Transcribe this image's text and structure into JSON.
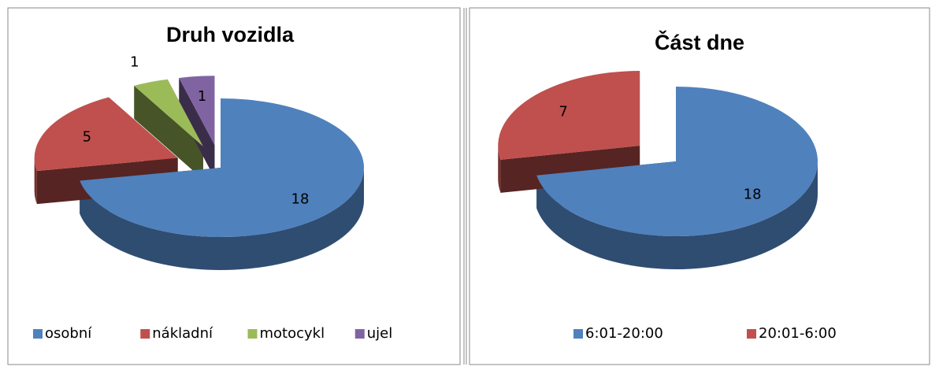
{
  "chart_data": [
    {
      "type": "pie",
      "title": "Druh vozidla",
      "categories": [
        "osobní",
        "nákladní",
        "motocykl",
        "ujel"
      ],
      "values": [
        18,
        5,
        1,
        1
      ],
      "colors": [
        "#4f81bd",
        "#c0504d",
        "#9bbb59",
        "#8064a2"
      ],
      "legend": "bottom"
    },
    {
      "type": "pie",
      "title": "Část dne",
      "categories": [
        "6:01-20:00",
        "20:01-6:00"
      ],
      "values": [
        18,
        7
      ],
      "colors": [
        "#4f81bd",
        "#c0504d"
      ],
      "legend": "bottom"
    }
  ]
}
